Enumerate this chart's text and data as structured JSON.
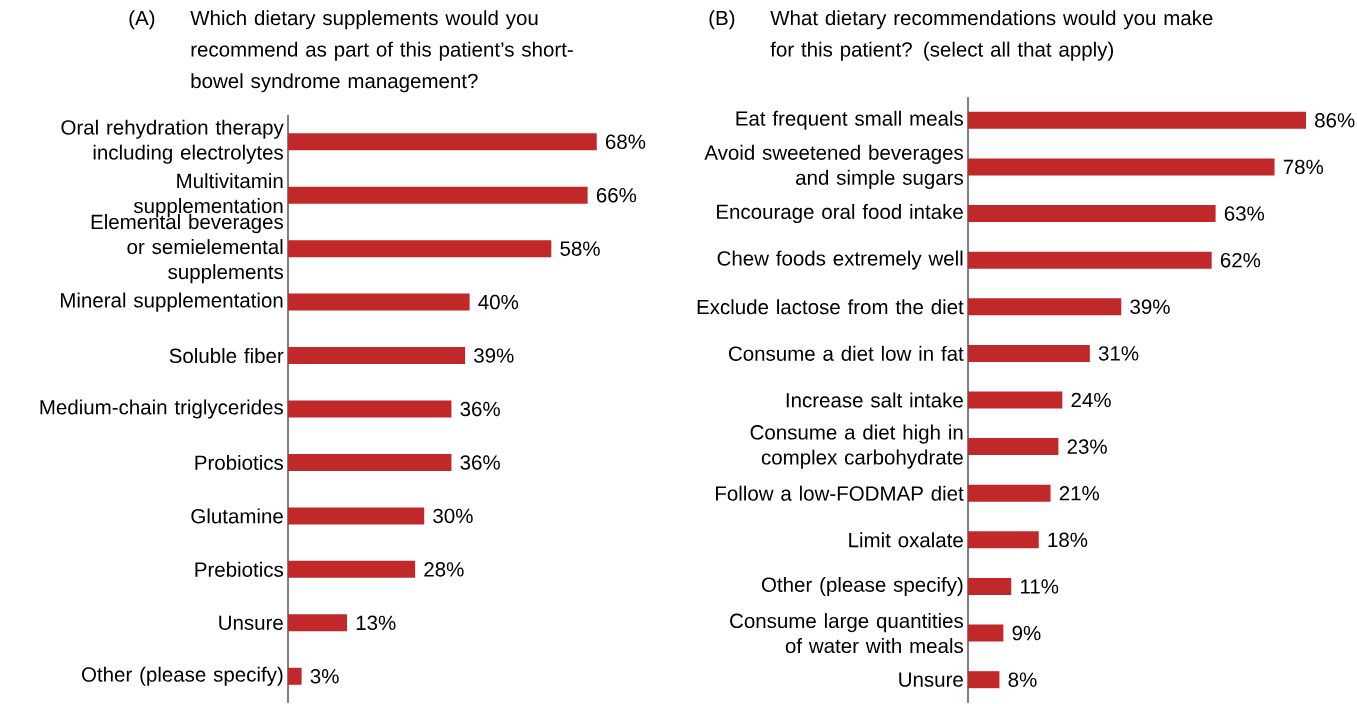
{
  "chart_data": [
    {
      "type": "bar",
      "orientation": "horizontal",
      "title": "Which dietary supplements would you recommend as part of this patient’s short-bowel syndrome management?",
      "annotations": [
        "(A)"
      ],
      "categories": [
        "Oral rehydration therapy including electrolytes",
        "Multivitamin supplementation",
        "Elemental beverages or semielemental supplements",
        "Mineral supplementation",
        "Soluble fiber",
        "Medium-chain triglycerides",
        "Probiotics",
        "Glutamine",
        "Prebiotics",
        "Unsure",
        "Other (please specify)"
      ],
      "values": [
        68,
        66,
        58,
        40,
        39,
        36,
        36,
        30,
        28,
        13,
        3
      ],
      "value_labels": [
        "68%",
        "66%",
        "58%",
        "40%",
        "39%",
        "36%",
        "36%",
        "30%",
        "28%",
        "13%",
        "3%"
      ],
      "color": "#c0282a"
    },
    {
      "type": "bar",
      "orientation": "horizontal",
      "title": "What dietary recommendations would you make for this patient? (select all that apply)",
      "annotations": [
        "(B)"
      ],
      "categories": [
        "Eat frequent small meals",
        "Avoid sweetened beverages and simple sugars",
        "Encourage oral food intake",
        "Chew foods extremely well",
        "Exclude lactose from the diet",
        "Consume a diet low in fat",
        "Increase salt intake",
        "Consume a diet high in complex carbohydrate",
        "Follow a low-FODMAP diet",
        "Limit oxalate",
        "Other (please specify)",
        "Consume large quantities of water with meals",
        "Unsure"
      ],
      "values": [
        86,
        78,
        63,
        62,
        39,
        31,
        24,
        23,
        21,
        18,
        11,
        9,
        8
      ],
      "value_labels": [
        "86%",
        "78%",
        "63%",
        "62%",
        "39%",
        "31%",
        "24%",
        "23%",
        "21%",
        "18%",
        "11%",
        "9%",
        "8%"
      ],
      "color": "#c0282a"
    }
  ]
}
